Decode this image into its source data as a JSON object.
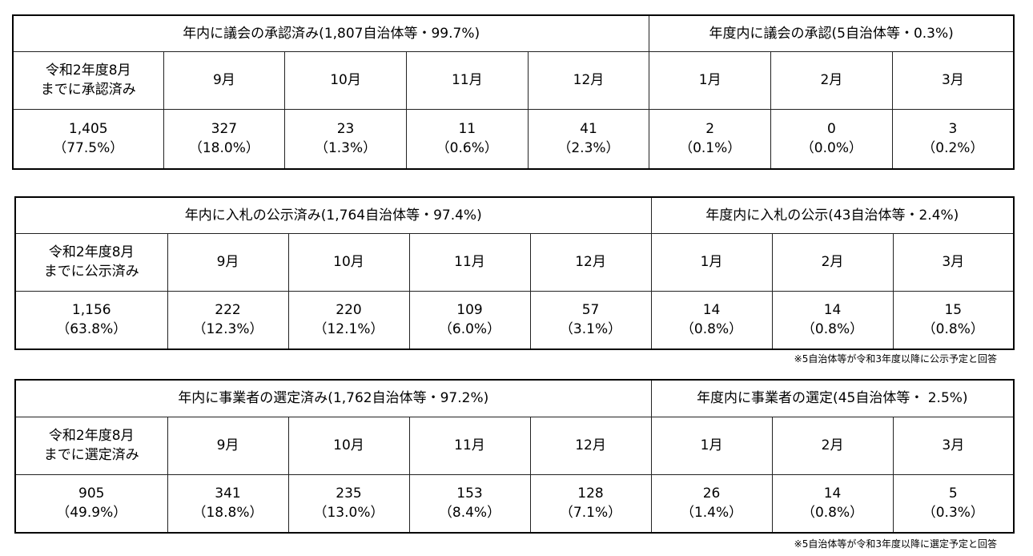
{
  "tables": [
    {
      "header": [
        "年内に議会の承認済み(1,807自治体等・99.7%)",
        "年度内に議会の承認(5自治体等・0.3%)"
      ],
      "columns": [
        [
          "令和2年度8月",
          "までに承認済み"
        ],
        [
          "9月"
        ],
        [
          "10月"
        ],
        [
          "11月"
        ],
        [
          "12月"
        ],
        [
          "1月"
        ],
        [
          "2月"
        ],
        [
          "3月"
        ]
      ],
      "cells": [
        {
          "count": "1,405",
          "percent": "（77.5%）"
        },
        {
          "count": "327",
          "percent": "（18.0%）"
        },
        {
          "count": "23",
          "percent": "（1.3%）"
        },
        {
          "count": "11",
          "percent": "（0.6%）"
        },
        {
          "count": "41",
          "percent": "（2.3%）"
        },
        {
          "count": "2",
          "percent": "（0.1%）"
        },
        {
          "count": "0",
          "percent": "（0.0%）"
        },
        {
          "count": "3",
          "percent": "（0.2%）"
        }
      ]
    },
    {
      "header": [
        "年内に入札の公示済み(1,764自治体等・97.4%)",
        "年度内に入札の公示(43自治体等・2.4%)"
      ],
      "columns": [
        [
          "令和2年度8月",
          "までに公示済み"
        ],
        [
          "9月"
        ],
        [
          "10月"
        ],
        [
          "11月"
        ],
        [
          "12月"
        ],
        [
          "1月"
        ],
        [
          "2月"
        ],
        [
          "3月"
        ]
      ],
      "cells": [
        {
          "count": "1,156",
          "percent": "（63.8%）"
        },
        {
          "count": "222",
          "percent": "（12.3%）"
        },
        {
          "count": "220",
          "percent": "（12.1%）"
        },
        {
          "count": "109",
          "percent": "（6.0%）"
        },
        {
          "count": "57",
          "percent": "（3.1%）"
        },
        {
          "count": "14",
          "percent": "（0.8%）"
        },
        {
          "count": "14",
          "percent": "（0.8%）"
        },
        {
          "count": "15",
          "percent": "（0.8%）"
        }
      ],
      "note": "※5自治体等が令和3年度以降に公示予定と回答"
    },
    {
      "header": [
        "年内に事業者の選定済み(1,762自治体等・97.2%)",
        "年度内に事業者の選定(45自治体等・ 2.5%)"
      ],
      "columns": [
        [
          "令和2年度8月",
          "までに選定済み"
        ],
        [
          "9月"
        ],
        [
          "10月"
        ],
        [
          "11月"
        ],
        [
          "12月"
        ],
        [
          "1月"
        ],
        [
          "2月"
        ],
        [
          "3月"
        ]
      ],
      "cells": [
        {
          "count": "905",
          "percent": "（49.9%）"
        },
        {
          "count": "341",
          "percent": "（18.8%）"
        },
        {
          "count": "235",
          "percent": "（13.0%）"
        },
        {
          "count": "153",
          "percent": "（8.4%）"
        },
        {
          "count": "128",
          "percent": "（7.1%）"
        },
        {
          "count": "26",
          "percent": "（1.4%）"
        },
        {
          "count": "14",
          "percent": "（0.8%）"
        },
        {
          "count": "5",
          "percent": "（0.3%）"
        }
      ],
      "note": "※5自治体等が令和3年度以降に選定予定と回答"
    }
  ]
}
